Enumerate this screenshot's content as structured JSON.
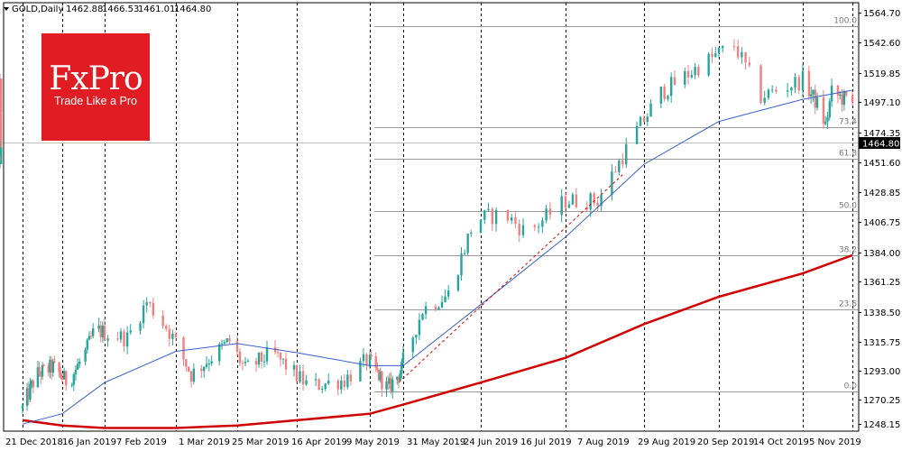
{
  "header": {
    "symbol": "GOLD,Daily",
    "open": "1462.88",
    "high": "1466.53",
    "low": "1461.01",
    "close": "1464.80"
  },
  "logo": {
    "main": "FxPro",
    "tagline": "Trade Like a Pro"
  },
  "colors": {
    "bull": "#26a69a",
    "bear": "#f08080",
    "ma_fast": "#3a5fcd",
    "ma_slow": "#d10000",
    "fib": "#999999",
    "logo_bg": "#e21c23"
  },
  "chart_data": {
    "type": "candlestick",
    "title": "GOLD,Daily",
    "price_tag": "1464.80",
    "y_ticks": [
      "1564.70",
      "1542.60",
      "1519.85",
      "1497.10",
      "1474.35",
      "1451.60",
      "1428.85",
      "1406.75",
      "1384.00",
      "1361.25",
      "1338.50",
      "1315.75",
      "1293.00",
      "1270.25",
      "1248.15"
    ],
    "x_ticks": [
      "21 Dec 2018",
      "16 Jan 2019",
      "7 Feb 2019",
      "1 Mar 2019",
      "25 Mar 2019",
      "16 Apr 2019",
      "9 May 2019",
      "31 May 2019",
      "24 Jun 2019",
      "16 Jul 2019",
      "7 Aug 2019",
      "29 Aug 2019",
      "20 Sep 2019",
      "14 Oct 2019",
      "5 Nov 2019"
    ],
    "ylim": [
      1248.15,
      1564.7
    ],
    "fibonacci": [
      {
        "label": "100.0",
        "price": 1554.5
      },
      {
        "label": "73.4",
        "price": 1476.3
      },
      {
        "label": "61.8",
        "price": 1452.0
      },
      {
        "label": "50.0",
        "price": 1412.2
      },
      {
        "label": "38.2",
        "price": 1378.0
      },
      {
        "label": "23.6",
        "price": 1336.1
      },
      {
        "label": "0.0",
        "price": 1273.0
      }
    ],
    "trend_line": {
      "from": {
        "date": "28 May 2019",
        "price": 1280
      },
      "to": {
        "date": "1 Aug 2019",
        "price": 1440
      }
    },
    "ma_fast_anchors": [
      {
        "date": "21 Dec 2018",
        "price": 1248
      },
      {
        "date": "16 Jan 2019",
        "price": 1256
      },
      {
        "date": "7 Feb 2019",
        "price": 1280
      },
      {
        "date": "1 Mar 2019",
        "price": 1304
      },
      {
        "date": "25 Mar 2019",
        "price": 1310
      },
      {
        "date": "16 Apr 2019",
        "price": 1303
      },
      {
        "date": "9 May 2019",
        "price": 1293
      },
      {
        "date": "31 May 2019",
        "price": 1293
      },
      {
        "date": "24 Jun 2019",
        "price": 1340
      },
      {
        "date": "16 Jul 2019",
        "price": 1392
      },
      {
        "date": "7 Aug 2019",
        "price": 1448
      },
      {
        "date": "29 Aug 2019",
        "price": 1481
      },
      {
        "date": "20 Sep 2019",
        "price": 1498
      },
      {
        "date": "14 Oct 2019",
        "price": 1505
      },
      {
        "date": "5 Nov 2019",
        "price": 1500
      },
      {
        "date": "16 Nov 2019",
        "price": 1488
      }
    ],
    "ma_slow_anchors": [
      {
        "date": "21 Dec 2018",
        "price": 1251
      },
      {
        "date": "16 Jan 2019",
        "price": 1247
      },
      {
        "date": "7 Feb 2019",
        "price": 1245
      },
      {
        "date": "1 Mar 2019",
        "price": 1245
      },
      {
        "date": "25 Mar 2019",
        "price": 1247
      },
      {
        "date": "16 Apr 2019",
        "price": 1251
      },
      {
        "date": "9 May 2019",
        "price": 1256
      },
      {
        "date": "31 May 2019",
        "price": 1263
      },
      {
        "date": "24 Jun 2019",
        "price": 1280
      },
      {
        "date": "16 Jul 2019",
        "price": 1299
      },
      {
        "date": "7 Aug 2019",
        "price": 1325
      },
      {
        "date": "29 Aug 2019",
        "price": 1346
      },
      {
        "date": "20 Sep 2019",
        "price": 1364
      },
      {
        "date": "14 Oct 2019",
        "price": 1378
      },
      {
        "date": "5 Nov 2019",
        "price": 1389
      },
      {
        "date": "16 Nov 2019",
        "price": 1396
      }
    ],
    "candle_anchors": [
      {
        "date": "21 Dec 2018",
        "price": 1260
      },
      {
        "date": "30 Dec 2018",
        "price": 1286
      },
      {
        "date": "10 Jan 2019",
        "price": 1292
      },
      {
        "date": "19 Jan 2019",
        "price": 1280
      },
      {
        "date": "28 Jan 2019",
        "price": 1303
      },
      {
        "date": "2 Feb 2019",
        "price": 1321
      },
      {
        "date": "14 Feb 2019",
        "price": 1314
      },
      {
        "date": "20 Feb 2019",
        "price": 1342
      },
      {
        "date": "26 Feb 2019",
        "price": 1323
      },
      {
        "date": "7 Mar 2019",
        "price": 1286
      },
      {
        "date": "22 Mar 2019",
        "price": 1312
      },
      {
        "date": "28 Mar 2019",
        "price": 1290
      },
      {
        "date": "7 Apr 2019",
        "price": 1303
      },
      {
        "date": "20 Apr 2019",
        "price": 1277
      },
      {
        "date": "1 May 2019",
        "price": 1282
      },
      {
        "date": "8 May 2019",
        "price": 1297
      },
      {
        "date": "21 May 2019",
        "price": 1275
      },
      {
        "date": "30 May 2019",
        "price": 1290
      },
      {
        "date": "6 Jun 2019",
        "price": 1336
      },
      {
        "date": "14 Jun 2019",
        "price": 1348
      },
      {
        "date": "22 Jun 2019",
        "price": 1405
      },
      {
        "date": "30 Jun 2019",
        "price": 1410
      },
      {
        "date": "6 Jul 2019",
        "price": 1395
      },
      {
        "date": "16 Jul 2019",
        "price": 1420
      },
      {
        "date": "25 Jul 2019",
        "price": 1420
      },
      {
        "date": "5 Aug 2019",
        "price": 1474
      },
      {
        "date": "12 Aug 2019",
        "price": 1503
      },
      {
        "date": "23 Aug 2019",
        "price": 1523
      },
      {
        "date": "2 Sep 2019",
        "price": 1540
      },
      {
        "date": "9 Sep 2019",
        "price": 1500
      },
      {
        "date": "20 Sep 2019",
        "price": 1513
      },
      {
        "date": "27 Sep 2019",
        "price": 1494
      },
      {
        "date": "1 Oct 2019",
        "price": 1478
      },
      {
        "date": "4 Oct 2019",
        "price": 1503
      },
      {
        "date": "20 Oct 2019",
        "price": 1490
      },
      {
        "date": "30 Oct 2019",
        "price": 1510
      },
      {
        "date": "4 Nov 2019",
        "price": 1509
      },
      {
        "date": "10 Nov 2019",
        "price": 1460
      },
      {
        "date": "13 Nov 2019",
        "price": 1455
      },
      {
        "date": "18 Nov 2019",
        "price": 1464
      }
    ]
  }
}
